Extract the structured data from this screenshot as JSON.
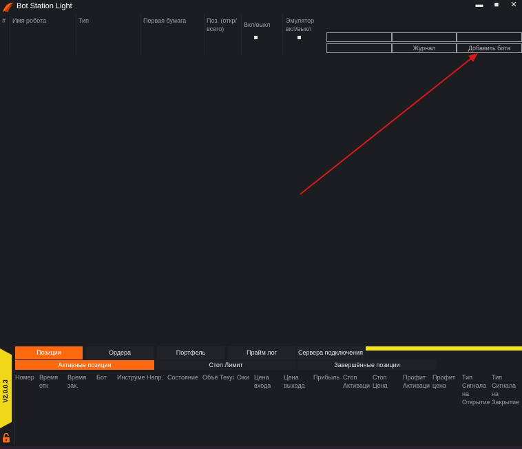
{
  "app": {
    "title": "Bot Station Light",
    "window_controls": {
      "minimize": "▬",
      "maximize": "■",
      "close": "✕"
    }
  },
  "robots_grid": {
    "columns": [
      "#",
      "Имя робота",
      "Тип",
      "Первая бумага",
      "Поз. (откр/всего)",
      "Вкл/выкл",
      "Эмулятор вкл/выкл"
    ],
    "toggles": {
      "on_off": false,
      "emulator": false
    }
  },
  "commands": {
    "journal_label": "Журнал",
    "add_bot_label": "Добавить бота"
  },
  "bottom": {
    "version": "V2.0.0.3",
    "tabs": [
      "Позиции",
      "Ордера",
      "Портфель",
      "Прайм лог",
      "Сервера подключения"
    ],
    "active_tab": "Позиции",
    "subtabs": [
      "Активные позиции",
      "Стоп Лимит",
      "Завершённые позиции"
    ],
    "active_subtab": "Активные позиции",
    "columns": [
      "Номер",
      "Время отк",
      "Время зак.",
      "Бот",
      "Инструме",
      "Напр.",
      "Состояние",
      "Объё",
      "Текуі",
      "Ожи",
      "Цена входа",
      "Цена выхода",
      "Прибыль",
      "Стоп Активаци",
      "Стоп Цена",
      "Профит Активаци",
      "Профит цена",
      "Тип Сигнала на Открытие",
      "Тип Сигнала на Закрытие"
    ]
  },
  "colors": {
    "background": "#1b1d21",
    "accent": "#ff6a10",
    "version_strip": "#f0d818",
    "annotation_arrow": "#d8191c"
  }
}
